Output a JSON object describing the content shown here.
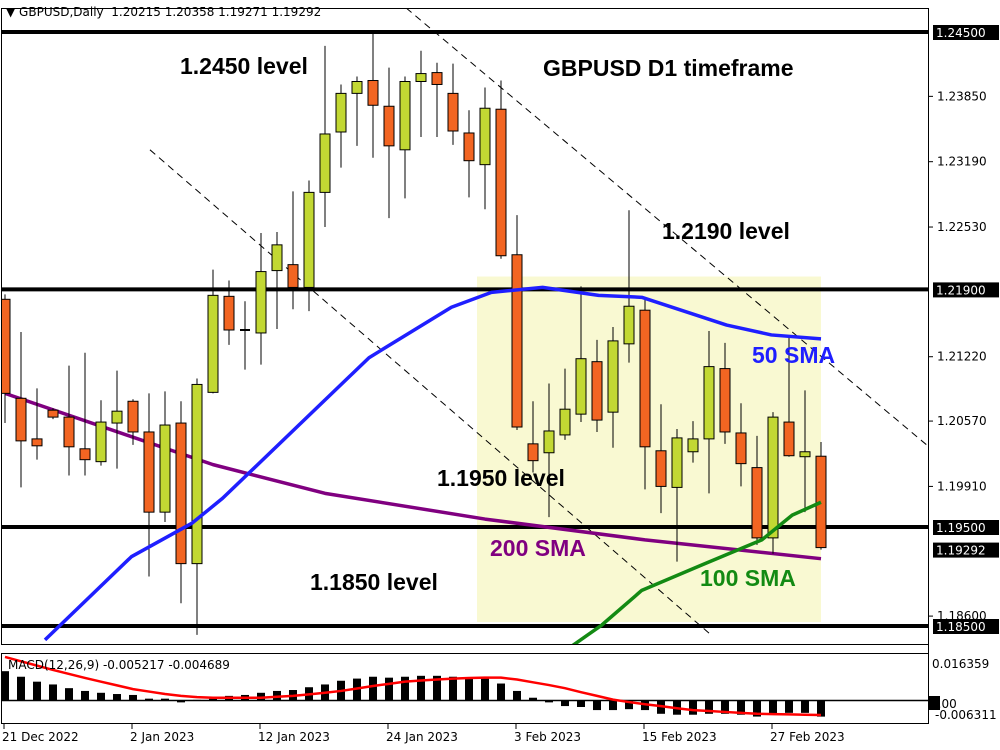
{
  "header": {
    "symbol": "GBPUSD,Daily",
    "ohlc": "1.20215 1.20358 1.19271 1.19292"
  },
  "colors": {
    "bull": "#c2d833",
    "bear": "#f26522",
    "sma50": "#1f1fff",
    "sma100": "#138a13",
    "sma200": "#800080",
    "zone": "#f9f9d2",
    "macd_signal": "#ff0000"
  },
  "annotations": {
    "title": "GBPUSD D1 timeframe",
    "l2450": "1.2450 level",
    "l2190": "1.2190 level",
    "l1950": "1.1950 level",
    "l1850": "1.1850 level",
    "sma50": "50 SMA",
    "sma200": "200 SMA",
    "sma100": "100 SMA"
  },
  "macd": {
    "label": "MACD(12,26,9) -0.005217 -0.004689",
    "axis_top": "0.016359",
    "axis_zero": "0.00",
    "axis_bottom": "-0.006311"
  },
  "chart_data": {
    "type": "candlestick",
    "symbol": "GBPUSD",
    "timeframe": "Daily",
    "ylim": [
      1.1806,
      1.2487
    ],
    "price_ticks": [
      "1.23850",
      "1.23190",
      "1.22530",
      "1.21220",
      "1.20570",
      "1.19910",
      "1.18600"
    ],
    "price_tick_values": [
      1.2385,
      1.2319,
      1.2253,
      1.2122,
      1.2057,
      1.1991,
      1.186
    ],
    "levels": [
      {
        "value": 1.245,
        "label": "1.24500"
      },
      {
        "value": 1.219,
        "label": "1.21900"
      },
      {
        "value": 1.195,
        "label": "1.19500"
      },
      {
        "value": 1.185,
        "label": "1.18500"
      }
    ],
    "current_price": {
      "value": 1.19292,
      "label": "1.19292"
    },
    "time_ticks": [
      {
        "bar": 0,
        "label": "21 Dec 2022"
      },
      {
        "bar": 8,
        "label": "2 Jan 2023"
      },
      {
        "bar": 16,
        "label": "12 Jan 2023"
      },
      {
        "bar": 24,
        "label": "24 Jan 2023"
      },
      {
        "bar": 32,
        "label": "3 Feb 2023"
      },
      {
        "bar": 40,
        "label": "15 Feb 2023"
      },
      {
        "bar": 48,
        "label": "27 Feb 2023"
      }
    ],
    "ohlc": [
      [
        1.218,
        1.2185,
        1.2055,
        1.2085
      ],
      [
        1.208,
        1.2147,
        1.199,
        1.2037
      ],
      [
        1.2039,
        1.209,
        1.2018,
        1.2032
      ],
      [
        1.2068,
        1.207,
        1.2059,
        1.2061
      ],
      [
        1.2061,
        1.2113,
        1.2002,
        1.2031
      ],
      [
        1.2029,
        1.2126,
        1.2002,
        1.2018
      ],
      [
        1.2016,
        1.2078,
        1.2012,
        1.2056
      ],
      [
        1.2055,
        1.2108,
        1.2009,
        1.2067
      ],
      [
        1.2077,
        1.2079,
        1.2033,
        1.2046
      ],
      [
        1.2046,
        1.2085,
        1.19,
        1.1965
      ],
      [
        1.1965,
        1.2087,
        1.1955,
        1.2053
      ],
      [
        1.2055,
        1.2077,
        1.1873,
        1.1913
      ],
      [
        1.1913,
        1.21,
        1.1841,
        1.2094
      ],
      [
        1.2086,
        1.221,
        1.2085,
        1.2184
      ],
      [
        1.2183,
        1.2199,
        1.2134,
        1.2149
      ],
      [
        1.2148,
        1.2178,
        1.2109,
        1.2149
      ],
      [
        1.2146,
        1.2247,
        1.2114,
        1.2208
      ],
      [
        1.2209,
        1.2248,
        1.215,
        1.2235
      ],
      [
        1.2215,
        1.2289,
        1.217,
        1.2192
      ],
      [
        1.2192,
        1.23,
        1.2168,
        1.2288
      ],
      [
        1.2288,
        1.2436,
        1.2253,
        1.2347
      ],
      [
        1.2349,
        1.2397,
        1.2313,
        1.2388
      ],
      [
        1.2388,
        1.2405,
        1.2335,
        1.24
      ],
      [
        1.2401,
        1.2448,
        1.2323,
        1.2376
      ],
      [
        1.2375,
        1.2414,
        1.2262,
        1.2335
      ],
      [
        1.2331,
        1.2405,
        1.2282,
        1.24
      ],
      [
        1.24,
        1.2431,
        1.2344,
        1.2408
      ],
      [
        1.2409,
        1.2419,
        1.2344,
        1.2397
      ],
      [
        1.2388,
        1.2418,
        1.2336,
        1.235
      ],
      [
        1.2348,
        1.2371,
        1.2283,
        1.232
      ],
      [
        1.2316,
        1.2394,
        1.2271,
        1.2373
      ],
      [
        1.2372,
        1.2401,
        1.2221,
        1.2224
      ],
      [
        1.2225,
        1.2265,
        1.2048,
        1.2051
      ],
      [
        1.2034,
        1.2077,
        1.2005,
        1.2017
      ],
      [
        1.2025,
        1.2095,
        1.196,
        1.2047
      ],
      [
        1.2043,
        1.211,
        1.2038,
        1.2069
      ],
      [
        1.2064,
        1.2193,
        1.2056,
        1.212
      ],
      [
        1.2117,
        1.2139,
        1.2046,
        1.2058
      ],
      [
        1.2066,
        1.2152,
        1.203,
        1.2138
      ],
      [
        1.2135,
        1.227,
        1.2116,
        1.2173
      ],
      [
        1.2169,
        1.2181,
        1.1988,
        1.2031
      ],
      [
        1.2027,
        1.2074,
        1.1964,
        1.1991
      ],
      [
        1.199,
        1.2049,
        1.1915,
        1.204
      ],
      [
        1.2026,
        1.2057,
        1.2015,
        1.2039
      ],
      [
        1.2039,
        1.2148,
        1.1984,
        1.2112
      ],
      [
        1.211,
        1.2136,
        1.2034,
        1.2046
      ],
      [
        1.2045,
        1.2075,
        1.1991,
        1.2014
      ],
      [
        1.201,
        1.2042,
        1.1932,
        1.1939
      ],
      [
        1.1939,
        1.2066,
        1.1923,
        1.2061
      ],
      [
        1.2056,
        1.2142,
        1.2021,
        1.2022
      ],
      [
        1.2021,
        1.2088,
        1.1965,
        1.2026
      ],
      [
        1.20215,
        1.20358,
        1.19271,
        1.19292
      ]
    ],
    "sma50": [
      [
        2.5,
        1.1836
      ],
      [
        7.9,
        1.192
      ],
      [
        11.7,
        1.1954
      ],
      [
        13.6,
        1.1979
      ],
      [
        22.75,
        1.2121
      ],
      [
        27.9,
        1.2172
      ],
      [
        30.4,
        1.2187
      ],
      [
        33.6,
        1.2192
      ],
      [
        37.1,
        1.2184
      ],
      [
        39.8,
        1.2182
      ],
      [
        45.1,
        1.2154
      ],
      [
        47.9,
        1.2144
      ],
      [
        51,
        1.214
      ]
    ],
    "sma100": [
      [
        35.1,
        1.1826
      ],
      [
        37.3,
        1.1851
      ],
      [
        39.8,
        1.1886
      ],
      [
        43.6,
        1.1912
      ],
      [
        47.3,
        1.1937
      ],
      [
        49.2,
        1.1962
      ],
      [
        51,
        1.1975
      ]
    ],
    "sma200": [
      [
        0,
        1.2085
      ],
      [
        13,
        1.2013
      ],
      [
        20,
        1.1984
      ],
      [
        30,
        1.1958
      ],
      [
        40,
        1.1937
      ],
      [
        51,
        1.1918
      ]
    ],
    "zone": {
      "from_bar": 30,
      "to_bar": 51,
      "top": 1.2203,
      "bottom": 1.1854
    },
    "trendlines": [
      {
        "from": [
          9.06,
          1.2331
        ],
        "to": [
          44.2,
          1.184
        ]
      },
      {
        "from": [
          24.5,
          1.2482
        ],
        "to": [
          57.6,
          1.2033
        ]
      }
    ],
    "macd_histogram": [
      0.0095,
      0.0077,
      0.0061,
      0.0052,
      0.004,
      0.0031,
      0.0025,
      0.0021,
      0.0018,
      0.0006,
      0.0006,
      -0.0006,
      0.0002,
      0.0006,
      0.0015,
      0.0018,
      0.0025,
      0.0031,
      0.0034,
      0.0043,
      0.0052,
      0.0064,
      0.0071,
      0.0077,
      0.0074,
      0.0077,
      0.008,
      0.008,
      0.0077,
      0.0071,
      0.0074,
      0.0055,
      0.0031,
      0.0009,
      -0.0006,
      -0.0018,
      -0.0021,
      -0.0031,
      -0.0031,
      -0.0028,
      -0.0031,
      -0.0043,
      -0.0046,
      -0.0046,
      -0.0043,
      -0.0043,
      -0.0046,
      -0.0052,
      -0.0043,
      -0.004,
      -0.004,
      -0.005217
    ],
    "macd_signal": [
      0.0141,
      0.0127,
      0.0113,
      0.0099,
      0.0086,
      0.0073,
      0.0061,
      0.0049,
      0.0037,
      0.0029,
      0.0021,
      0.0015,
      0.0011,
      0.0009,
      0.0009,
      0.0009,
      0.0009,
      0.0012,
      0.0015,
      0.002,
      0.0025,
      0.0031,
      0.0039,
      0.0047,
      0.0054,
      0.0061,
      0.0065,
      0.0068,
      0.0071,
      0.0073,
      0.0074,
      0.0074,
      0.0068,
      0.0059,
      0.005,
      0.004,
      0.0027,
      0.0015,
      0.0003,
      -0.0005,
      -0.0012,
      -0.0018,
      -0.0025,
      -0.0031,
      -0.0034,
      -0.0037,
      -0.004,
      -0.0043,
      -0.0044,
      -0.0045,
      -0.0046,
      -0.004689
    ],
    "macd_ylim": [
      -0.006311,
      0.016359
    ]
  }
}
